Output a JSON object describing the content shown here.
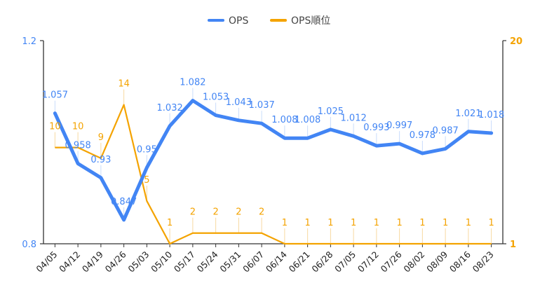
{
  "chart_data": {
    "type": "line",
    "categories": [
      "04/05",
      "04/12",
      "04/19",
      "04/26",
      "05/03",
      "05/10",
      "05/17",
      "05/24",
      "05/31",
      "06/07",
      "06/14",
      "06/21",
      "06/28",
      "07/05",
      "07/12",
      "07/26",
      "08/02",
      "08/09",
      "08/16",
      "08/23"
    ],
    "series": [
      {
        "name": "OPS",
        "axis": "left",
        "color": "#4285f4",
        "values": [
          1.057,
          0.958,
          0.93,
          0.847,
          0.95,
          1.032,
          1.082,
          1.053,
          1.043,
          1.037,
          1.008,
          1.008,
          1.025,
          1.012,
          0.993,
          0.997,
          0.978,
          0.987,
          1.021,
          1.018
        ],
        "labels": [
          "1.057",
          "0.958",
          "0.93",
          "0.847",
          "0.95",
          "1.032",
          "1.082",
          "1.053",
          "1.043",
          "1.037",
          "1.008",
          "1.008",
          "1.025",
          "1.012",
          "0.993",
          "0.997",
          "0.978",
          "0.987",
          "1.021",
          "1.018"
        ]
      },
      {
        "name": "OPS順位",
        "axis": "right",
        "color": "#f4a300",
        "values": [
          10,
          10,
          9,
          14,
          5,
          1,
          2,
          2,
          2,
          2,
          1,
          1,
          1,
          1,
          1,
          1,
          1,
          1,
          1,
          1
        ],
        "labels": [
          "10",
          "10",
          "9",
          "14",
          "5",
          "1",
          "2",
          "2",
          "2",
          "2",
          "1",
          "1",
          "1",
          "1",
          "1",
          "1",
          "1",
          "1",
          "1",
          "1"
        ]
      }
    ],
    "y_left": {
      "min": 0.8,
      "max": 1.2,
      "ticks": [
        "0.8",
        "1.2"
      ]
    },
    "y_right": {
      "min": 1,
      "max": 20,
      "ticks": [
        "1",
        "20"
      ]
    },
    "legend_position": "top-center",
    "grid": false
  }
}
